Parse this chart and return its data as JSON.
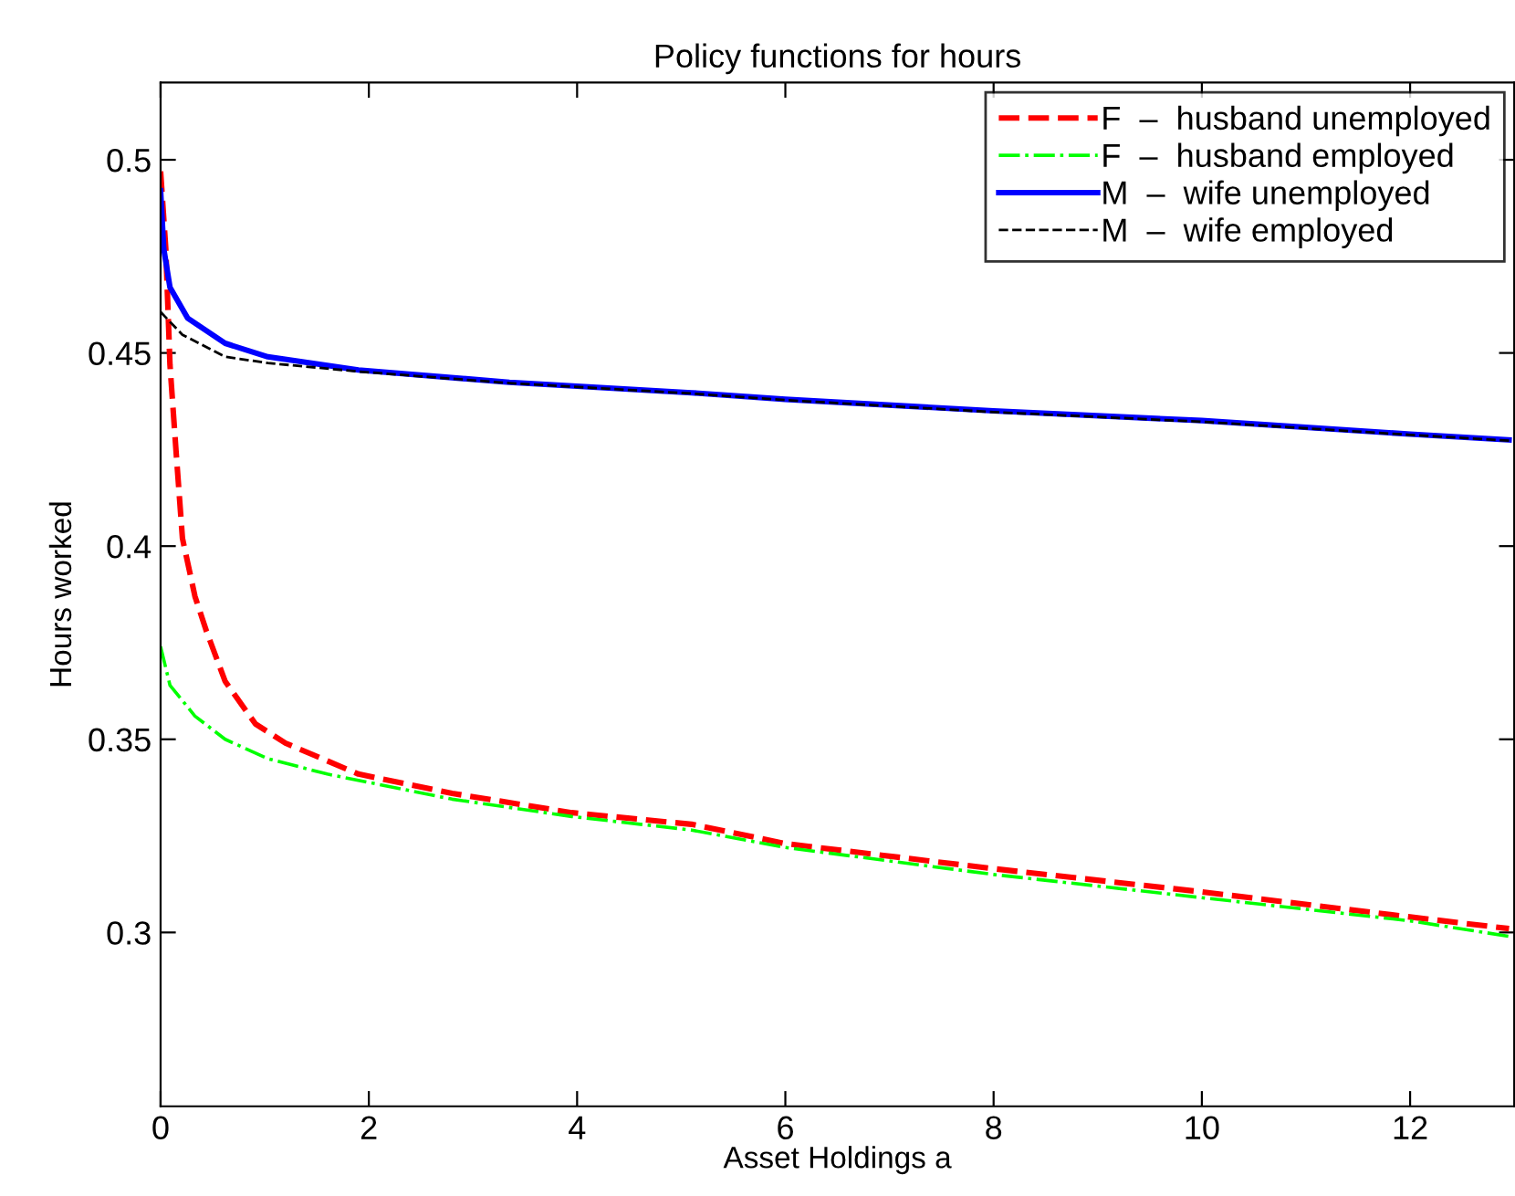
{
  "chart_data": {
    "type": "line",
    "title": "Policy functions for hours",
    "xlabel": "Asset Holdings a",
    "ylabel": "Hours worked",
    "xlim": [
      0,
      13
    ],
    "ylim": [
      0.255,
      0.52
    ],
    "xticks": [
      0,
      2,
      4,
      6,
      8,
      10,
      12
    ],
    "yticks": [
      0.3,
      0.35,
      0.4,
      0.45,
      0.5
    ],
    "grid": false,
    "legend": "top right",
    "marker": "none",
    "series": [
      {
        "name": "F  –  husband unemployed",
        "color": "#ff0000",
        "line_style": "dashed",
        "x": [
          0,
          0.05,
          0.09,
          0.15,
          0.21,
          0.33,
          0.44,
          0.62,
          0.91,
          1.2,
          1.9,
          2.8,
          3.95,
          5.1,
          6,
          8,
          10,
          12,
          12.95
        ],
        "values": [
          0.497,
          0.477,
          0.447,
          0.424,
          0.402,
          0.387,
          0.378,
          0.365,
          0.354,
          0.349,
          0.341,
          0.336,
          0.331,
          0.328,
          0.323,
          0.3165,
          0.3105,
          0.304,
          0.301
        ]
      },
      {
        "name": "F  –  husband employed",
        "color": "#00ff00",
        "line_style": "dashdot",
        "x": [
          0,
          0.09,
          0.33,
          0.62,
          1.03,
          1.6,
          2.8,
          3.95,
          5.1,
          6,
          8,
          10,
          12,
          12.95
        ],
        "values": [
          0.374,
          0.364,
          0.356,
          0.35,
          0.345,
          0.341,
          0.3345,
          0.33,
          0.3265,
          0.322,
          0.315,
          0.309,
          0.303,
          0.299
        ]
      },
      {
        "name": "M  –  wife unemployed",
        "color": "#0000ff",
        "line_style": "solid",
        "x": [
          0,
          0.03,
          0.09,
          0.26,
          0.62,
          1.03,
          1.9,
          3.35,
          5.1,
          6,
          8,
          10,
          12,
          12.95
        ],
        "values": [
          0.492,
          0.477,
          0.467,
          0.459,
          0.4525,
          0.449,
          0.4456,
          0.4424,
          0.4397,
          0.438,
          0.435,
          0.4325,
          0.429,
          0.4275
        ]
      },
      {
        "name": "M  –  wife employed",
        "color": "#000000",
        "line_style": "dashed",
        "x": [
          0,
          0.21,
          0.62,
          1.03,
          1.9,
          3.35,
          5.1,
          6,
          8,
          10,
          12,
          12.95
        ],
        "values": [
          0.4606,
          0.4547,
          0.449,
          0.4474,
          0.4452,
          0.4422,
          0.4395,
          0.4378,
          0.4347,
          0.4322,
          0.4288,
          0.4273
        ]
      }
    ]
  }
}
